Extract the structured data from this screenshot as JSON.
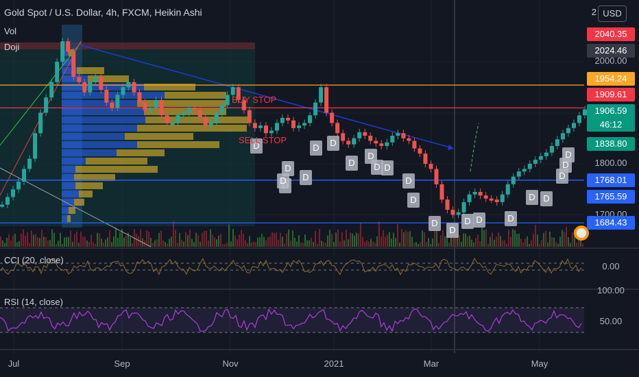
{
  "header": {
    "title": "Gold Spot / U.S. Dollar, 4h, FXCM, Heikin Ashi",
    "vol_label": "Vol",
    "doji_label": "Doji"
  },
  "currency": {
    "label": "USD",
    "prefix": "2"
  },
  "chart_data": {
    "type": "line",
    "title": "Gold Spot / U.S. Dollar, 4h, FXCM, Heikin Ashi",
    "price_axis": {
      "range": [
        1650,
        2080
      ],
      "ticks": [
        2000.0,
        1800.0,
        1700.0
      ]
    },
    "price_tags": [
      {
        "value": "2040.35",
        "color": "#f23645"
      },
      {
        "value": "2024.46",
        "color": "#363a45"
      },
      {
        "value": "1954.24",
        "color": "#ffa726"
      },
      {
        "value": "1909.61",
        "color": "#f23645"
      },
      {
        "value": "1906.59",
        "color": "#089981",
        "sub": "46:12"
      },
      {
        "value": "1838.80",
        "color": "#089981"
      },
      {
        "value": "1768.01",
        "color": "#2962ff"
      },
      {
        "value": "1765.59",
        "color": "#2962ff"
      },
      {
        "value": "1684.43",
        "color": "#2962ff"
      }
    ],
    "x_tick_labels": [
      "Jul",
      "Sep",
      "Nov",
      "2021",
      "Mar",
      "May"
    ],
    "horizontal_levels": [
      {
        "value": 1954.24,
        "color": "#ffa726"
      },
      {
        "value": 1909.61,
        "color": "#f23645"
      },
      {
        "value": 1768.01,
        "color": "#2962ff"
      },
      {
        "value": 1684.43,
        "color": "#2962ff"
      }
    ],
    "annotations": [
      "BUY STOP",
      "SELL STOP"
    ],
    "doji_marker": "D",
    "price_series": [
      1720,
      1735,
      1750,
      1765,
      1790,
      1810,
      1860,
      1900,
      1930,
      1960,
      2000,
      2040,
      2020,
      1970,
      1960,
      1940,
      1960,
      1970,
      1945,
      1920,
      1910,
      1935,
      1950,
      1960,
      1940,
      1920,
      1905,
      1910,
      1925,
      1895,
      1880,
      1880,
      1895,
      1900,
      1910,
      1905,
      1890,
      1875,
      1880,
      1900,
      1915,
      1935,
      1950,
      1925,
      1905,
      1880,
      1870,
      1875,
      1860,
      1865,
      1880,
      1890,
      1885,
      1870,
      1875,
      1880,
      1895,
      1920,
      1950,
      1900,
      1880,
      1860,
      1845,
      1838,
      1850,
      1862,
      1855,
      1845,
      1840,
      1835,
      1842,
      1855,
      1860,
      1850,
      1845,
      1830,
      1820,
      1800,
      1790,
      1760,
      1730,
      1710,
      1700,
      1705,
      1725,
      1740,
      1745,
      1738,
      1732,
      1730,
      1725,
      1740,
      1760,
      1775,
      1785,
      1790,
      1800,
      1808,
      1815,
      1822,
      1835,
      1848,
      1860,
      1870,
      1880,
      1895,
      1906.59
    ],
    "cci": {
      "label": "CCI (20, close)",
      "ticks": [
        "0.00"
      ]
    },
    "rsi": {
      "label": "RSI (14, close)",
      "ticks": [
        "100.00",
        "50.00"
      ]
    }
  }
}
